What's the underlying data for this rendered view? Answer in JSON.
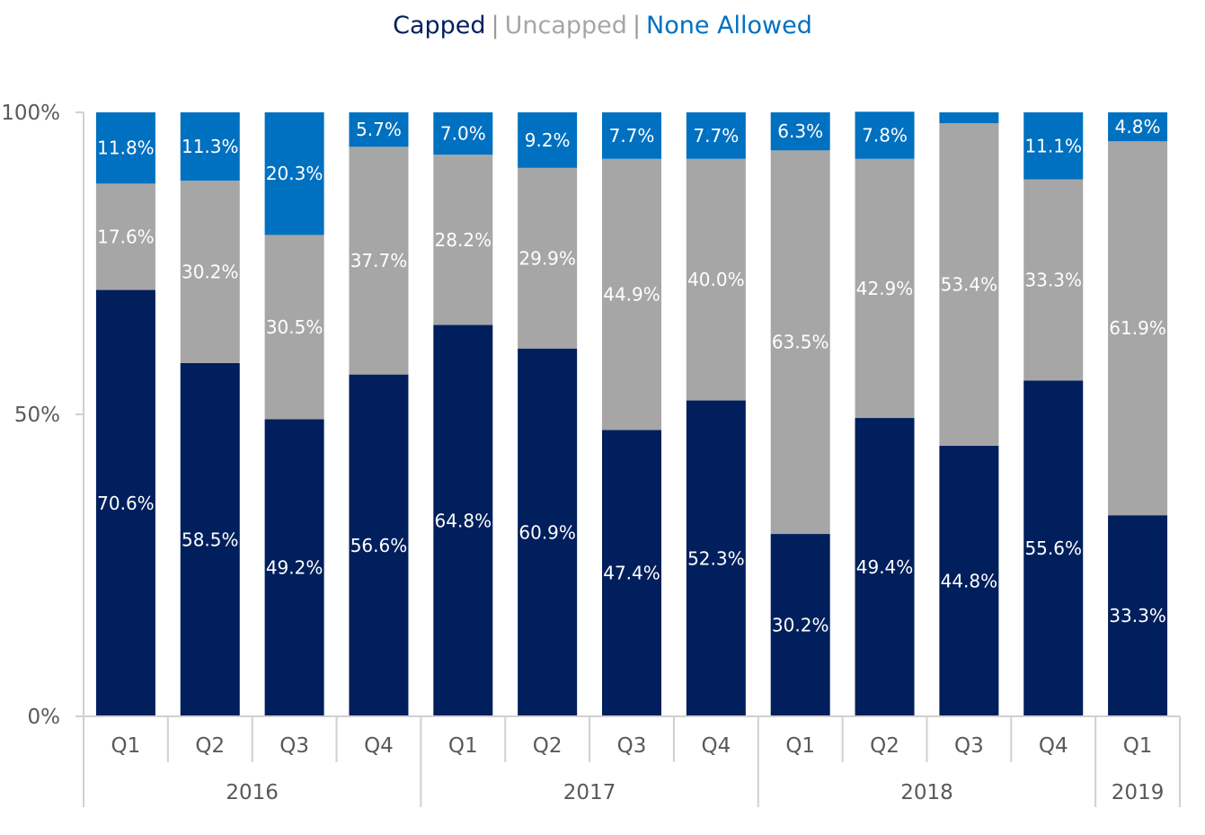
{
  "legend": {
    "separator": "|",
    "items": [
      {
        "label": "Capped",
        "color": "#001f5c"
      },
      {
        "label": "Uncapped",
        "color": "#a6a6a6"
      },
      {
        "label": "None Allowed",
        "color": "#0070c0"
      }
    ]
  },
  "chart_data": {
    "type": "bar",
    "stacked": true,
    "title": "",
    "xlabel": "",
    "ylabel": "",
    "ylim": [
      0,
      100
    ],
    "yticks": [
      {
        "value": 0,
        "label": "0%"
      },
      {
        "value": 50,
        "label": "50%"
      },
      {
        "value": 100,
        "label": "100%"
      }
    ],
    "grid": false,
    "legend_position": "top-center",
    "categories": [
      "Q1",
      "Q2",
      "Q3",
      "Q4",
      "Q1",
      "Q2",
      "Q3",
      "Q4",
      "Q1",
      "Q2",
      "Q3",
      "Q4",
      "Q1"
    ],
    "groups": [
      {
        "label": "2016",
        "count": 4
      },
      {
        "label": "2017",
        "count": 4
      },
      {
        "label": "2018",
        "count": 4
      },
      {
        "label": "2019",
        "count": 1
      }
    ],
    "series": [
      {
        "name": "Capped",
        "color": "#001f5c",
        "values": [
          70.6,
          58.5,
          49.2,
          56.6,
          64.8,
          60.9,
          47.4,
          52.3,
          30.2,
          49.4,
          44.8,
          55.6,
          33.3
        ],
        "labels": [
          "70.6%",
          "58.5%",
          "49.2%",
          "56.6%",
          "64.8%",
          "60.9%",
          "47.4%",
          "52.3%",
          "30.2%",
          "49.4%",
          "44.8%",
          "55.6%",
          "33.3%"
        ]
      },
      {
        "name": "Uncapped",
        "color": "#a6a6a6",
        "values": [
          17.6,
          30.2,
          30.5,
          37.7,
          28.2,
          29.9,
          44.9,
          40.0,
          63.5,
          42.9,
          53.4,
          33.3,
          61.9
        ],
        "labels": [
          "17.6%",
          "30.2%",
          "30.5%",
          "37.7%",
          "28.2%",
          "29.9%",
          "44.9%",
          "40.0%",
          "63.5%",
          "42.9%",
          "53.4%",
          "33.3%",
          "61.9%"
        ]
      },
      {
        "name": "None Allowed",
        "color": "#0070c0",
        "values": [
          11.8,
          11.3,
          20.3,
          5.7,
          7.0,
          9.2,
          7.7,
          7.7,
          6.3,
          7.8,
          1.8,
          11.1,
          4.8
        ],
        "labels": [
          "11.8%",
          "11.3%",
          "20.3%",
          "5.7%",
          "7.0%",
          "9.2%",
          "7.7%",
          "7.7%",
          "6.3%",
          "7.8%",
          "",
          "11.1%",
          "4.8%"
        ]
      }
    ]
  }
}
